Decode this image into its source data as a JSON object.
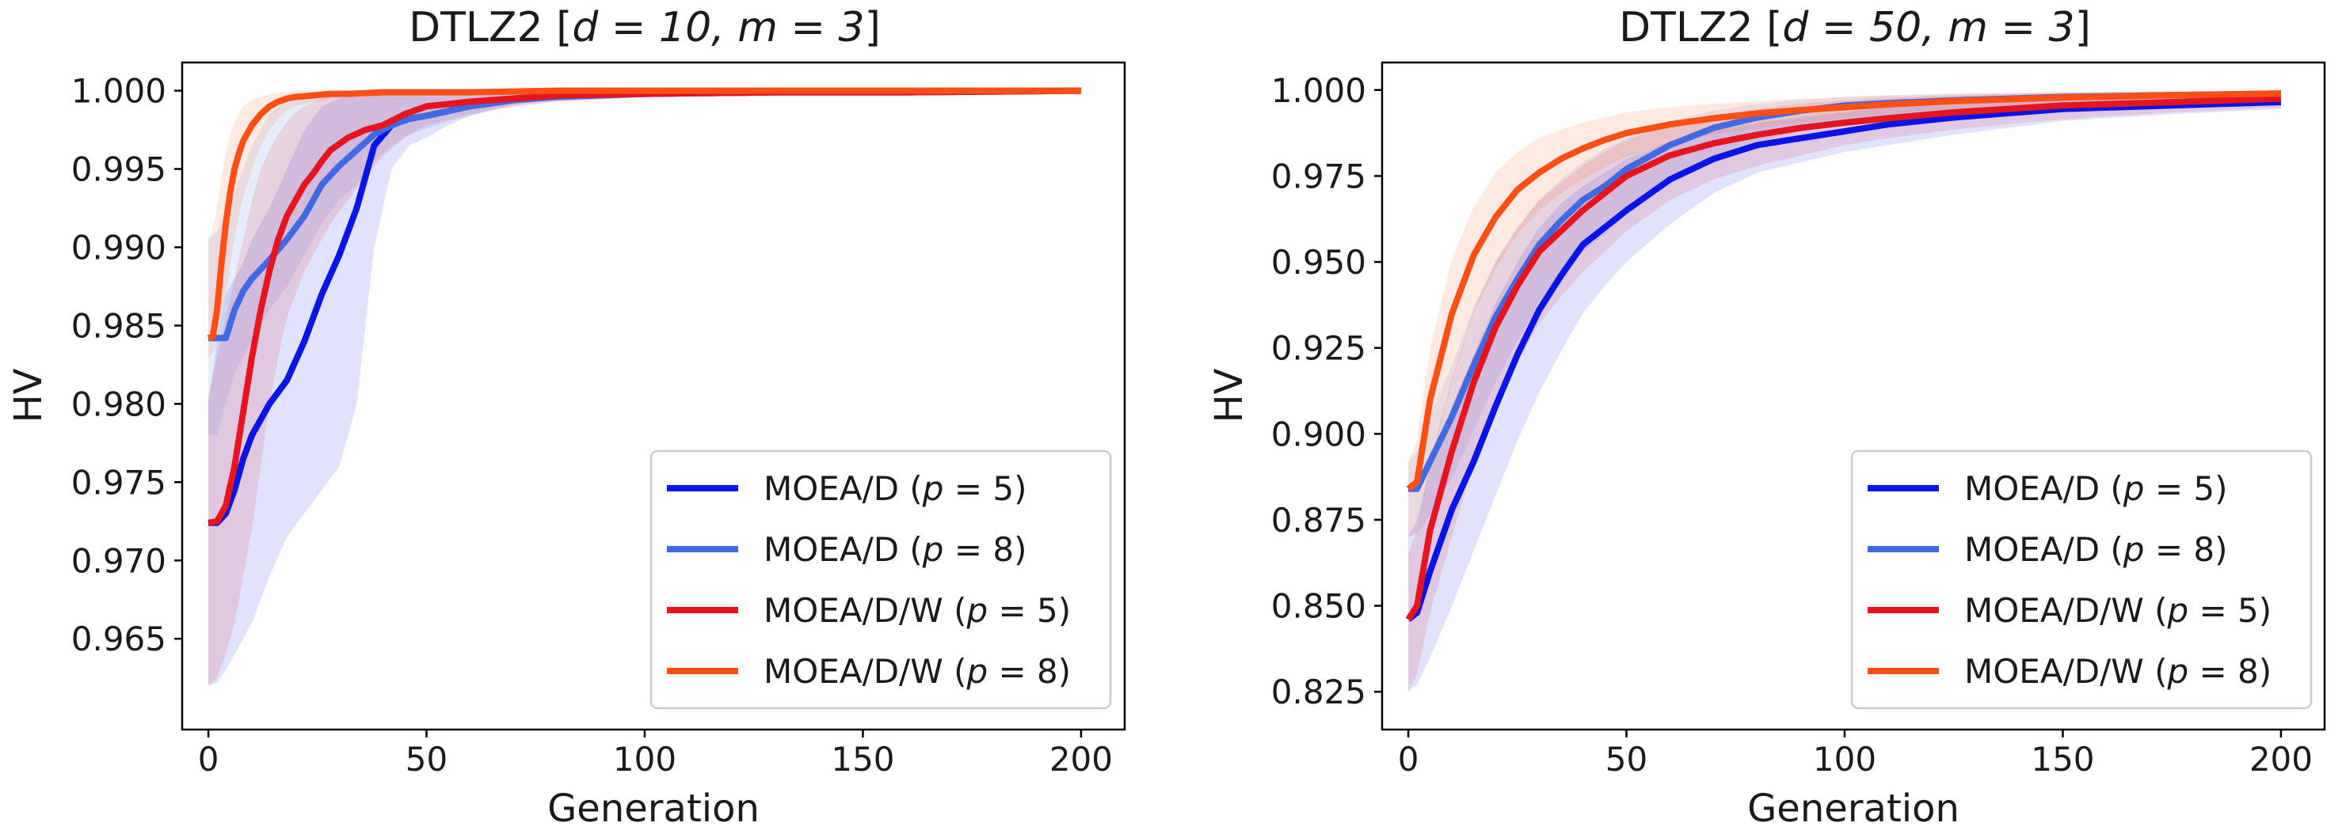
{
  "chart_data": [
    {
      "type": "line",
      "title_prefix": "DTLZ2 [",
      "title_math": "d = 10, m = 3",
      "title_suffix": "]",
      "xlabel": "Generation",
      "ylabel": "HV",
      "xlim": [
        -6,
        210
      ],
      "ylim": [
        0.9592,
        1.0018
      ],
      "xticks": [
        0,
        50,
        100,
        150,
        200
      ],
      "xtick_labels": [
        "0",
        "50",
        "100",
        "150",
        "200"
      ],
      "yticks": [
        0.965,
        0.97,
        0.975,
        0.98,
        0.985,
        0.99,
        0.995,
        1.0
      ],
      "ytick_labels": [
        "0.965",
        "0.970",
        "0.975",
        "0.980",
        "0.985",
        "0.990",
        "0.995",
        "1.000"
      ],
      "grid": false,
      "legend": "lower-right",
      "series": [
        {
          "name": "MOEA/D (p = 5)",
          "label_text": "MOEA/D (",
          "label_var": "p",
          "label_val": "= 5)",
          "color": "#0a14e6",
          "x": [
            0,
            2,
            4,
            6,
            8,
            10,
            14,
            18,
            22,
            26,
            30,
            34,
            38,
            42,
            46,
            50,
            55,
            60,
            65,
            70,
            80,
            100,
            130,
            160,
            200
          ],
          "y": [
            0.9724,
            0.9724,
            0.973,
            0.9745,
            0.9765,
            0.978,
            0.98,
            0.9815,
            0.984,
            0.987,
            0.9895,
            0.9925,
            0.9965,
            0.9978,
            0.9982,
            0.9984,
            0.9987,
            0.9991,
            0.9993,
            0.9995,
            0.9997,
            0.9998,
            0.9999,
            0.9999,
            1.0
          ],
          "lower": [
            0.962,
            0.9622,
            0.963,
            0.964,
            0.965,
            0.966,
            0.969,
            0.9715,
            0.973,
            0.9745,
            0.976,
            0.98,
            0.99,
            0.995,
            0.9965,
            0.997,
            0.9978,
            0.9984,
            0.9988,
            0.9991,
            0.9995,
            0.9997,
            0.9998,
            0.9998,
            0.9999
          ],
          "upper": [
            0.98,
            0.984,
            0.987,
            0.988,
            0.989,
            0.9905,
            0.9925,
            0.995,
            0.9975,
            0.999,
            0.9995,
            0.9997,
            0.9998,
            0.9999,
            0.9999,
            1.0,
            1.0,
            1.0,
            1.0,
            1.0,
            1.0,
            1.0,
            1.0,
            1.0,
            1.0
          ]
        },
        {
          "name": "MOEA/D (p = 8)",
          "label_text": "MOEA/D (",
          "label_var": "p",
          "label_val": "= 8)",
          "color": "#4169e1",
          "x": [
            0,
            2,
            4,
            6,
            8,
            10,
            14,
            18,
            22,
            26,
            30,
            34,
            38,
            42,
            46,
            50,
            55,
            60,
            65,
            70,
            80,
            100,
            130,
            160,
            200
          ],
          "y": [
            0.9842,
            0.9842,
            0.9842,
            0.986,
            0.9872,
            0.988,
            0.9892,
            0.9905,
            0.992,
            0.994,
            0.9952,
            0.9962,
            0.9972,
            0.9978,
            0.9982,
            0.9984,
            0.9987,
            0.999,
            0.9992,
            0.9994,
            0.9996,
            0.9998,
            0.9999,
            0.9999,
            1.0
          ],
          "lower": [
            0.978,
            0.978,
            0.98,
            0.982,
            0.983,
            0.984,
            0.986,
            0.9875,
            0.9895,
            0.9915,
            0.993,
            0.994,
            0.9955,
            0.9965,
            0.9972,
            0.9976,
            0.998,
            0.9984,
            0.9987,
            0.999,
            0.9993,
            0.9996,
            0.9998,
            0.9998,
            0.9999
          ],
          "upper": [
            0.9905,
            0.991,
            0.992,
            0.9935,
            0.995,
            0.9965,
            0.9985,
            0.9995,
            0.9998,
            0.9999,
            1.0,
            1.0,
            1.0,
            1.0,
            1.0,
            1.0,
            1.0,
            1.0,
            1.0,
            1.0,
            1.0,
            1.0,
            1.0,
            1.0,
            1.0
          ]
        },
        {
          "name": "MOEA/D/W (p = 5)",
          "label_text": "MOEA/D/W (",
          "label_var": "p",
          "label_val": "= 5)",
          "color": "#e6141e",
          "x": [
            0,
            2,
            4,
            6,
            8,
            10,
            12,
            14,
            16,
            18,
            20,
            22,
            24,
            26,
            28,
            32,
            36,
            40,
            45,
            50,
            60,
            70,
            80,
            100,
            130,
            160,
            200
          ],
          "y": [
            0.9724,
            0.9725,
            0.9735,
            0.976,
            0.9795,
            0.983,
            0.986,
            0.9885,
            0.9905,
            0.992,
            0.993,
            0.994,
            0.9947,
            0.9955,
            0.9962,
            0.997,
            0.9975,
            0.9978,
            0.9985,
            0.999,
            0.9993,
            0.9995,
            0.9997,
            0.9998,
            0.9999,
            0.9999,
            1.0
          ],
          "lower": [
            0.962,
            0.9625,
            0.964,
            0.966,
            0.969,
            0.972,
            0.976,
            0.98,
            0.983,
            0.9855,
            0.987,
            0.9885,
            0.9895,
            0.9905,
            0.9915,
            0.993,
            0.9945,
            0.9958,
            0.997,
            0.9978,
            0.9985,
            0.999,
            0.9993,
            0.9996,
            0.9998,
            0.9998,
            0.9999
          ],
          "upper": [
            0.9805,
            0.983,
            0.9855,
            0.988,
            0.9905,
            0.993,
            0.995,
            0.9962,
            0.9972,
            0.998,
            0.9986,
            0.999,
            0.9993,
            0.9995,
            0.9996,
            0.9998,
            0.9999,
            0.9999,
            1.0,
            1.0,
            1.0,
            1.0,
            1.0,
            1.0,
            1.0,
            1.0,
            1.0
          ]
        },
        {
          "name": "MOEA/D/W (p = 8)",
          "label_text": "MOEA/D/W (",
          "label_var": "p",
          "label_val": "= 8)",
          "color": "#ff4f14",
          "x": [
            0,
            1,
            2,
            3,
            4,
            5,
            6,
            7,
            8,
            10,
            12,
            14,
            16,
            18,
            20,
            24,
            28,
            32,
            40,
            50,
            60,
            80,
            100,
            150,
            200
          ],
          "y": [
            0.9842,
            0.9843,
            0.986,
            0.989,
            0.9915,
            0.9935,
            0.995,
            0.996,
            0.9968,
            0.9978,
            0.9985,
            0.999,
            0.9993,
            0.9995,
            0.9996,
            0.9997,
            0.9998,
            0.9998,
            0.9999,
            0.9999,
            0.9999,
            1.0,
            1.0,
            1.0,
            1.0
          ],
          "lower": [
            0.983,
            0.9832,
            0.984,
            0.9855,
            0.987,
            0.9888,
            0.9905,
            0.992,
            0.9932,
            0.995,
            0.9965,
            0.9975,
            0.9982,
            0.9987,
            0.999,
            0.9993,
            0.9995,
            0.9996,
            0.9997,
            0.9998,
            0.9998,
            0.9999,
            0.9999,
            0.9999,
            1.0
          ],
          "upper": [
            0.9905,
            0.991,
            0.9925,
            0.9945,
            0.996,
            0.9972,
            0.998,
            0.9986,
            0.999,
            0.9994,
            0.9996,
            0.9998,
            0.9999,
            0.9999,
            1.0,
            1.0,
            1.0,
            1.0,
            1.0,
            1.0,
            1.0,
            1.0,
            1.0,
            1.0,
            1.0
          ]
        }
      ]
    },
    {
      "type": "line",
      "title_prefix": "DTLZ2 [",
      "title_math": "d = 50, m = 3",
      "title_suffix": "]",
      "xlabel": "Generation",
      "ylabel": "HV",
      "xlim": [
        -6,
        210
      ],
      "ylim": [
        0.814,
        1.008
      ],
      "xticks": [
        0,
        50,
        100,
        150,
        200
      ],
      "xtick_labels": [
        "0",
        "50",
        "100",
        "150",
        "200"
      ],
      "yticks": [
        0.825,
        0.85,
        0.875,
        0.9,
        0.925,
        0.95,
        0.975,
        1.0
      ],
      "ytick_labels": [
        "0.825",
        "0.850",
        "0.875",
        "0.900",
        "0.925",
        "0.950",
        "0.975",
        "1.000"
      ],
      "grid": false,
      "legend": "lower-right",
      "series": [
        {
          "name": "MOEA/D (p = 5)",
          "label_text": "MOEA/D (",
          "label_var": "p",
          "label_val": "= 5)",
          "color": "#0a14e6",
          "x": [
            0,
            2,
            5,
            10,
            15,
            20,
            25,
            30,
            35,
            40,
            45,
            50,
            60,
            70,
            80,
            90,
            100,
            110,
            125,
            150,
            175,
            200
          ],
          "y": [
            0.846,
            0.848,
            0.86,
            0.878,
            0.892,
            0.908,
            0.923,
            0.936,
            0.946,
            0.955,
            0.96,
            0.965,
            0.974,
            0.98,
            0.984,
            0.986,
            0.988,
            0.99,
            0.992,
            0.9945,
            0.9955,
            0.9965
          ],
          "lower": [
            0.825,
            0.827,
            0.835,
            0.85,
            0.866,
            0.882,
            0.898,
            0.912,
            0.924,
            0.935,
            0.943,
            0.95,
            0.961,
            0.97,
            0.976,
            0.979,
            0.982,
            0.984,
            0.987,
            0.991,
            0.993,
            0.9945
          ],
          "upper": [
            0.87,
            0.875,
            0.89,
            0.908,
            0.923,
            0.938,
            0.95,
            0.96,
            0.967,
            0.972,
            0.976,
            0.98,
            0.985,
            0.988,
            0.9905,
            0.992,
            0.9935,
            0.995,
            0.9965,
            0.9975,
            0.9982,
            0.9988
          ]
        },
        {
          "name": "MOEA/D (p = 8)",
          "label_text": "MOEA/D (",
          "label_var": "p",
          "label_val": "= 8)",
          "color": "#4169e1",
          "x": [
            0,
            2,
            5,
            10,
            15,
            20,
            25,
            30,
            35,
            40,
            45,
            50,
            60,
            70,
            80,
            90,
            100,
            110,
            125,
            150,
            175,
            200
          ],
          "y": [
            0.884,
            0.884,
            0.892,
            0.905,
            0.92,
            0.934,
            0.945,
            0.955,
            0.962,
            0.968,
            0.972,
            0.977,
            0.984,
            0.989,
            0.992,
            0.994,
            0.9955,
            0.9962,
            0.997,
            0.998,
            0.9985,
            0.999
          ],
          "lower": [
            0.87,
            0.871,
            0.876,
            0.887,
            0.901,
            0.915,
            0.927,
            0.938,
            0.946,
            0.953,
            0.958,
            0.964,
            0.973,
            0.98,
            0.985,
            0.988,
            0.9905,
            0.992,
            0.9935,
            0.9955,
            0.9965,
            0.9975
          ],
          "upper": [
            0.892,
            0.895,
            0.905,
            0.92,
            0.937,
            0.95,
            0.96,
            0.968,
            0.974,
            0.979,
            0.983,
            0.986,
            0.991,
            0.994,
            0.996,
            0.9972,
            0.998,
            0.9985,
            0.999,
            0.9994,
            0.9996,
            0.9998
          ]
        },
        {
          "name": "MOEA/D/W (p = 5)",
          "label_text": "MOEA/D/W (",
          "label_var": "p",
          "label_val": "= 5)",
          "color": "#e6141e",
          "x": [
            0,
            2,
            5,
            10,
            15,
            20,
            25,
            30,
            35,
            40,
            45,
            50,
            60,
            70,
            80,
            90,
            100,
            110,
            125,
            150,
            175,
            200
          ],
          "y": [
            0.846,
            0.85,
            0.872,
            0.895,
            0.915,
            0.931,
            0.943,
            0.953,
            0.959,
            0.965,
            0.97,
            0.975,
            0.981,
            0.9845,
            0.987,
            0.989,
            0.9905,
            0.9918,
            0.9935,
            0.9955,
            0.9965,
            0.9975
          ],
          "lower": [
            0.825,
            0.83,
            0.848,
            0.87,
            0.891,
            0.908,
            0.921,
            0.932,
            0.94,
            0.947,
            0.953,
            0.959,
            0.968,
            0.974,
            0.978,
            0.981,
            0.984,
            0.986,
            0.9885,
            0.9915,
            0.9935,
            0.995
          ],
          "upper": [
            0.865,
            0.872,
            0.892,
            0.916,
            0.936,
            0.95,
            0.96,
            0.968,
            0.973,
            0.978,
            0.982,
            0.9855,
            0.99,
            0.9925,
            0.9945,
            0.996,
            0.997,
            0.9978,
            0.9985,
            0.9992,
            0.9995,
            0.9997
          ]
        },
        {
          "name": "MOEA/D/W (p = 8)",
          "label_text": "MOEA/D/W (",
          "label_var": "p",
          "label_val": "= 8)",
          "color": "#ff4f14",
          "x": [
            0,
            2,
            5,
            10,
            15,
            20,
            25,
            30,
            35,
            40,
            45,
            50,
            60,
            70,
            80,
            90,
            100,
            110,
            125,
            150,
            175,
            200
          ],
          "y": [
            0.884,
            0.886,
            0.91,
            0.935,
            0.952,
            0.963,
            0.971,
            0.976,
            0.98,
            0.983,
            0.9855,
            0.9875,
            0.99,
            0.9918,
            0.9932,
            0.9942,
            0.995,
            0.9958,
            0.9968,
            0.9978,
            0.9985,
            0.999
          ],
          "lower": [
            0.87,
            0.872,
            0.89,
            0.915,
            0.935,
            0.948,
            0.958,
            0.965,
            0.97,
            0.974,
            0.9775,
            0.9805,
            0.9845,
            0.987,
            0.989,
            0.9905,
            0.9918,
            0.993,
            0.9945,
            0.9962,
            0.9972,
            0.998
          ],
          "upper": [
            0.892,
            0.898,
            0.925,
            0.951,
            0.966,
            0.976,
            0.982,
            0.986,
            0.9885,
            0.9905,
            0.992,
            0.9935,
            0.995,
            0.996,
            0.9968,
            0.9974,
            0.998,
            0.9984,
            0.9988,
            0.9992,
            0.9995,
            0.9997
          ]
        }
      ]
    }
  ]
}
